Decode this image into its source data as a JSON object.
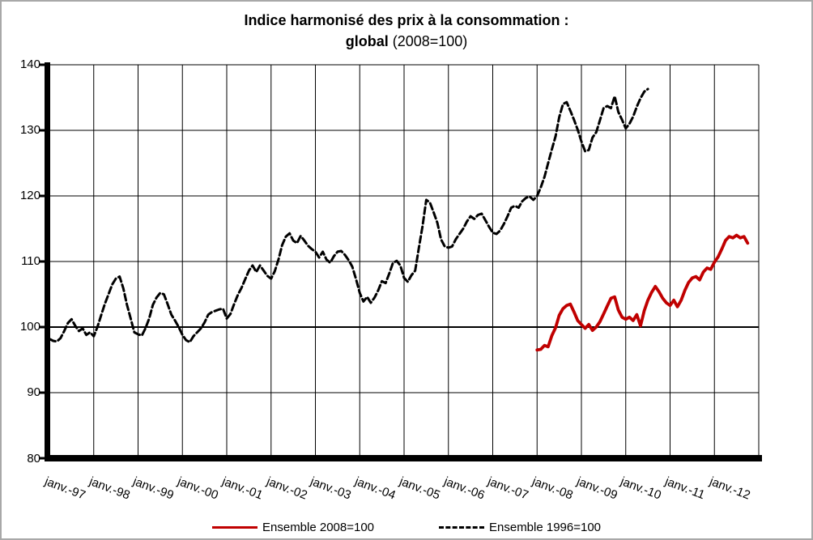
{
  "title": {
    "line1": "Indice harmonisé des prix à la consommation :",
    "line2_bold": "global",
    "line2_rest": " (2008=100)"
  },
  "colors": {
    "background": "#ffffff",
    "frame_border": "#a8a8a8",
    "grid": "#000000",
    "axis": "#000000",
    "series_2008": "#c00000",
    "series_1996": "#000000"
  },
  "y_axis": {
    "ticks": [
      140,
      130,
      120,
      110,
      100,
      90,
      80
    ],
    "min": 80,
    "max": 140
  },
  "x_axis": {
    "labels": [
      "janv.-97",
      "janv.-98",
      "janv.-99",
      "janv.-00",
      "janv.-01",
      "janv.-02",
      "janv.-03",
      "janv.-04",
      "janv.-05",
      "janv.-06",
      "janv.-07",
      "janv.-08",
      "janv.-09",
      "janv.-10",
      "janv.-11",
      "janv.-12"
    ]
  },
  "legend": {
    "item1": {
      "label": "Ensemble 2008=100",
      "style": "solid",
      "color": "#c00000"
    },
    "item2": {
      "label": "Ensemble 1996=100",
      "style": "dashed",
      "color": "#000000"
    }
  },
  "chart_data": {
    "type": "line",
    "title": "Indice harmonisé des prix à la consommation : global (2008=100)",
    "x_unit": "month",
    "x_tick_labels": [
      "janv.-97",
      "janv.-98",
      "janv.-99",
      "janv.-00",
      "janv.-01",
      "janv.-02",
      "janv.-03",
      "janv.-04",
      "janv.-05",
      "janv.-06",
      "janv.-07",
      "janv.-08",
      "janv.-09",
      "janv.-10",
      "janv.-11",
      "janv.-12"
    ],
    "months_total": 192,
    "ylim": [
      80,
      140
    ],
    "grid": true,
    "legend_position": "bottom",
    "series": [
      {
        "name": "Ensemble 1996=100",
        "color": "#000000",
        "dash": true,
        "start_label": "janv.-97",
        "start_month_index": 0,
        "values": [
          98.2,
          97.9,
          97.8,
          98.3,
          99.4,
          100.6,
          101.2,
          100.2,
          99.4,
          99.8,
          98.8,
          99.2,
          98.6,
          100.0,
          101.8,
          103.5,
          105.0,
          106.5,
          107.4,
          107.7,
          105.9,
          103.4,
          101.3,
          99.2,
          98.9,
          98.7,
          99.8,
          101.3,
          103.4,
          104.5,
          105.2,
          105.0,
          103.5,
          101.9,
          101.0,
          100.0,
          98.8,
          98.0,
          97.7,
          98.6,
          99.2,
          99.8,
          100.7,
          101.9,
          102.3,
          102.5,
          102.7,
          102.8,
          101.3,
          102.0,
          103.5,
          104.9,
          106.0,
          107.3,
          108.6,
          109.4,
          108.4,
          109.4,
          108.6,
          107.8,
          107.4,
          108.5,
          110.3,
          112.5,
          113.8,
          114.3,
          113.2,
          112.8,
          113.9,
          113.2,
          112.4,
          111.9,
          111.5,
          110.6,
          111.5,
          110.3,
          109.8,
          110.8,
          111.5,
          111.6,
          111.0,
          110.2,
          109.2,
          107.3,
          105.2,
          103.9,
          104.6,
          103.7,
          104.5,
          105.6,
          107.0,
          106.7,
          108.2,
          109.8,
          110.1,
          109.4,
          107.5,
          106.9,
          107.9,
          108.6,
          112.1,
          115.4,
          119.4,
          119.0,
          117.5,
          115.9,
          113.4,
          112.3,
          112.1,
          112.3,
          113.4,
          114.2,
          115.0,
          116.1,
          116.9,
          116.5,
          117.1,
          117.3,
          116.3,
          115.3,
          114.4,
          114.2,
          114.7,
          115.7,
          116.9,
          118.2,
          118.5,
          118.2,
          119.2,
          119.7,
          119.9,
          119.4,
          120.0,
          121.3,
          122.9,
          125.0,
          127.1,
          129.1,
          132.0,
          134.0,
          134.3,
          133.0,
          131.6,
          130.1,
          128.3,
          126.8,
          127.0,
          128.9,
          129.7,
          131.5,
          133.4,
          133.7,
          133.4,
          135.2,
          132.8,
          131.6,
          130.3,
          131.0,
          132.1,
          133.6,
          134.9,
          135.9,
          136.3
        ]
      },
      {
        "name": "Ensemble 2008=100",
        "color": "#c00000",
        "dash": false,
        "start_label": "janv.-08",
        "start_month_index": 132,
        "values": [
          96.5,
          96.6,
          97.2,
          97.0,
          98.7,
          99.9,
          101.8,
          102.8,
          103.3,
          103.5,
          102.3,
          101.0,
          100.4,
          99.8,
          100.4,
          99.5,
          100.0,
          100.8,
          102.0,
          103.2,
          104.4,
          104.6,
          102.6,
          101.5,
          101.2,
          101.5,
          101.0,
          101.9,
          100.2,
          102.5,
          104.1,
          105.3,
          106.2,
          105.4,
          104.4,
          103.7,
          103.3,
          104.1,
          103.1,
          104.1,
          105.6,
          106.8,
          107.5,
          107.7,
          107.2,
          108.4,
          109.0,
          108.8,
          109.9,
          110.7,
          111.9,
          113.2,
          113.8,
          113.6,
          114.0,
          113.6,
          113.8,
          112.8
        ]
      }
    ]
  }
}
